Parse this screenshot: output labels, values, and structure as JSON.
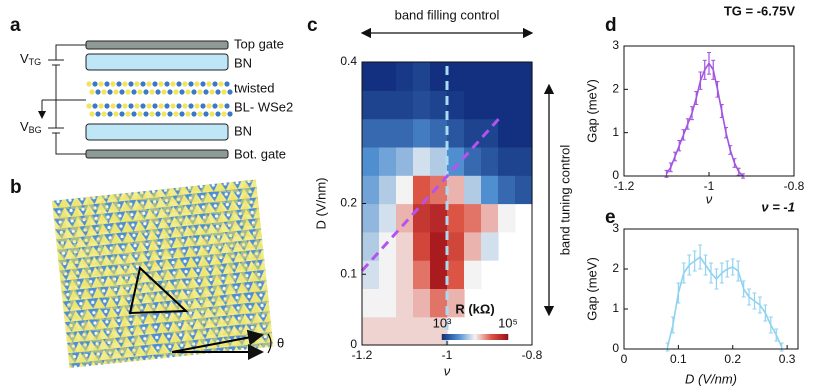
{
  "panel_labels": [
    "a",
    "b",
    "c",
    "d",
    "e"
  ],
  "device": {
    "layers": [
      "Top gate",
      "BN",
      "twisted",
      "BL- WSe2",
      "BN",
      "Bot. gate"
    ],
    "V_TG": {
      "base": "V",
      "sub": "TG"
    },
    "V_BG": {
      "base": "V",
      "sub": "BG"
    }
  },
  "lattice": {
    "angle_label": "θ"
  },
  "chart_data": [
    {
      "type": "heatmap",
      "xlabel": "ν",
      "ylabel": "D (V/nm)",
      "top_annotation": "band filling control",
      "side_annotation": "band tuning control",
      "xlim": [
        -1.2,
        -0.8
      ],
      "xticks": [
        -1.2,
        -1,
        -0.8
      ],
      "ylim": [
        0,
        0.4
      ],
      "yticks": [
        0,
        0.1,
        0.2,
        0.4
      ],
      "x": [
        -1.18,
        -1.14,
        -1.1,
        -1.06,
        -1.02,
        -0.98,
        -0.94,
        -0.9,
        -0.86,
        -0.82
      ],
      "y": [
        0.02,
        0.06,
        0.1,
        0.14,
        0.18,
        0.22,
        0.26,
        0.3,
        0.34,
        0.38
      ],
      "z": [
        [
          4.1,
          4.1,
          4.1,
          4.1,
          4.1,
          null,
          null,
          null,
          null,
          null
        ],
        [
          4.0,
          4.0,
          4.1,
          4.2,
          4.4,
          4.2,
          null,
          null,
          null,
          null
        ],
        [
          3.9,
          4.0,
          4.1,
          4.4,
          4.9,
          4.5,
          4.0,
          null,
          null,
          null
        ],
        [
          3.8,
          4.0,
          4.1,
          4.6,
          4.9,
          4.6,
          4.2,
          3.9,
          null,
          null
        ],
        [
          3.7,
          3.9,
          4.2,
          4.7,
          4.8,
          4.5,
          4.4,
          4.2,
          4.0,
          null
        ],
        [
          3.6,
          3.8,
          4.0,
          4.5,
          4.4,
          4.2,
          3.8,
          3.5,
          3.3,
          3.2
        ],
        [
          3.5,
          3.6,
          3.7,
          3.9,
          3.8,
          3.5,
          3.3,
          3.2,
          3.1,
          3.1
        ],
        [
          3.3,
          3.3,
          3.3,
          3.4,
          3.3,
          3.2,
          3.1,
          3.1,
          3.0,
          3.0
        ],
        [
          3.1,
          3.1,
          3.1,
          3.15,
          3.1,
          3.05,
          3.0,
          3.0,
          3.0,
          3.0
        ],
        [
          3.0,
          3.0,
          3.05,
          3.1,
          3.0,
          3.0,
          3.0,
          3.0,
          3.0,
          3.0
        ]
      ],
      "colorbar_title": "R (kΩ)",
      "zlim": [
        3,
        5
      ],
      "zticks": [
        {
          "value": 3,
          "label": "10³"
        },
        {
          "value": 5,
          "label": "10⁵"
        }
      ],
      "colormap": [
        "#12307f",
        "#4f8fd0",
        "#f3f3f3",
        "#dc5444",
        "#9e0d17"
      ],
      "guides": [
        {
          "color": "#a9dcf2",
          "x": [
            -1,
            -1
          ],
          "y": [
            0,
            0.4
          ]
        },
        {
          "color": "#b552f0",
          "x": [
            -1.2,
            -0.87
          ],
          "y": [
            0.105,
            0.325
          ]
        }
      ]
    },
    {
      "type": "line",
      "title": "TG = -6.75V",
      "xlabel": "ν",
      "ylabel": "Gap (meV)",
      "color": "#a155e0",
      "xlim": [
        -1.2,
        -0.8
      ],
      "xticks": [
        -1.2,
        -1,
        -0.8
      ],
      "ylim": [
        0,
        3
      ],
      "yticks": [
        0,
        1,
        2,
        3
      ],
      "x": [
        -1.1,
        -1.09,
        -1.08,
        -1.07,
        -1.06,
        -1.05,
        -1.04,
        -1.03,
        -1.02,
        -1.01,
        -1.0,
        -0.99,
        -0.98,
        -0.97,
        -0.96,
        -0.95,
        -0.94,
        -0.93,
        -0.92
      ],
      "values": [
        0.05,
        0.2,
        0.45,
        0.7,
        0.95,
        1.2,
        1.45,
        1.8,
        2.2,
        2.45,
        2.6,
        2.45,
        2.0,
        1.5,
        1.0,
        0.6,
        0.3,
        0.1,
        0.0
      ],
      "errors": [
        0.08,
        0.1,
        0.1,
        0.12,
        0.12,
        0.12,
        0.15,
        0.15,
        0.2,
        0.22,
        0.25,
        0.22,
        0.18,
        0.15,
        0.12,
        0.1,
        0.1,
        0.08,
        0.05
      ]
    },
    {
      "type": "line",
      "title": "ν = -1",
      "xlabel": "D (V/nm)",
      "ylabel": "Gap (meV)",
      "color": "#8fd3f0",
      "xlim": [
        0,
        0.32
      ],
      "xticks": [
        0,
        0.1,
        0.2,
        0.3
      ],
      "ylim": [
        0,
        3
      ],
      "yticks": [
        0,
        1,
        2,
        3
      ],
      "x": [
        0.08,
        0.09,
        0.1,
        0.11,
        0.12,
        0.13,
        0.14,
        0.15,
        0.16,
        0.17,
        0.18,
        0.19,
        0.2,
        0.21,
        0.22,
        0.23,
        0.24,
        0.25,
        0.26,
        0.27,
        0.28,
        0.29
      ],
      "values": [
        0.05,
        0.6,
        1.4,
        1.9,
        2.1,
        2.2,
        2.3,
        2.1,
        1.9,
        1.75,
        1.9,
        2.0,
        2.05,
        1.95,
        1.5,
        1.3,
        1.2,
        1.1,
        0.9,
        0.6,
        0.35,
        0.05
      ],
      "errors": [
        0.1,
        0.2,
        0.25,
        0.25,
        0.25,
        0.25,
        0.3,
        0.25,
        0.25,
        0.25,
        0.25,
        0.2,
        0.2,
        0.25,
        0.2,
        0.2,
        0.2,
        0.2,
        0.2,
        0.2,
        0.15,
        0.1
      ]
    }
  ]
}
